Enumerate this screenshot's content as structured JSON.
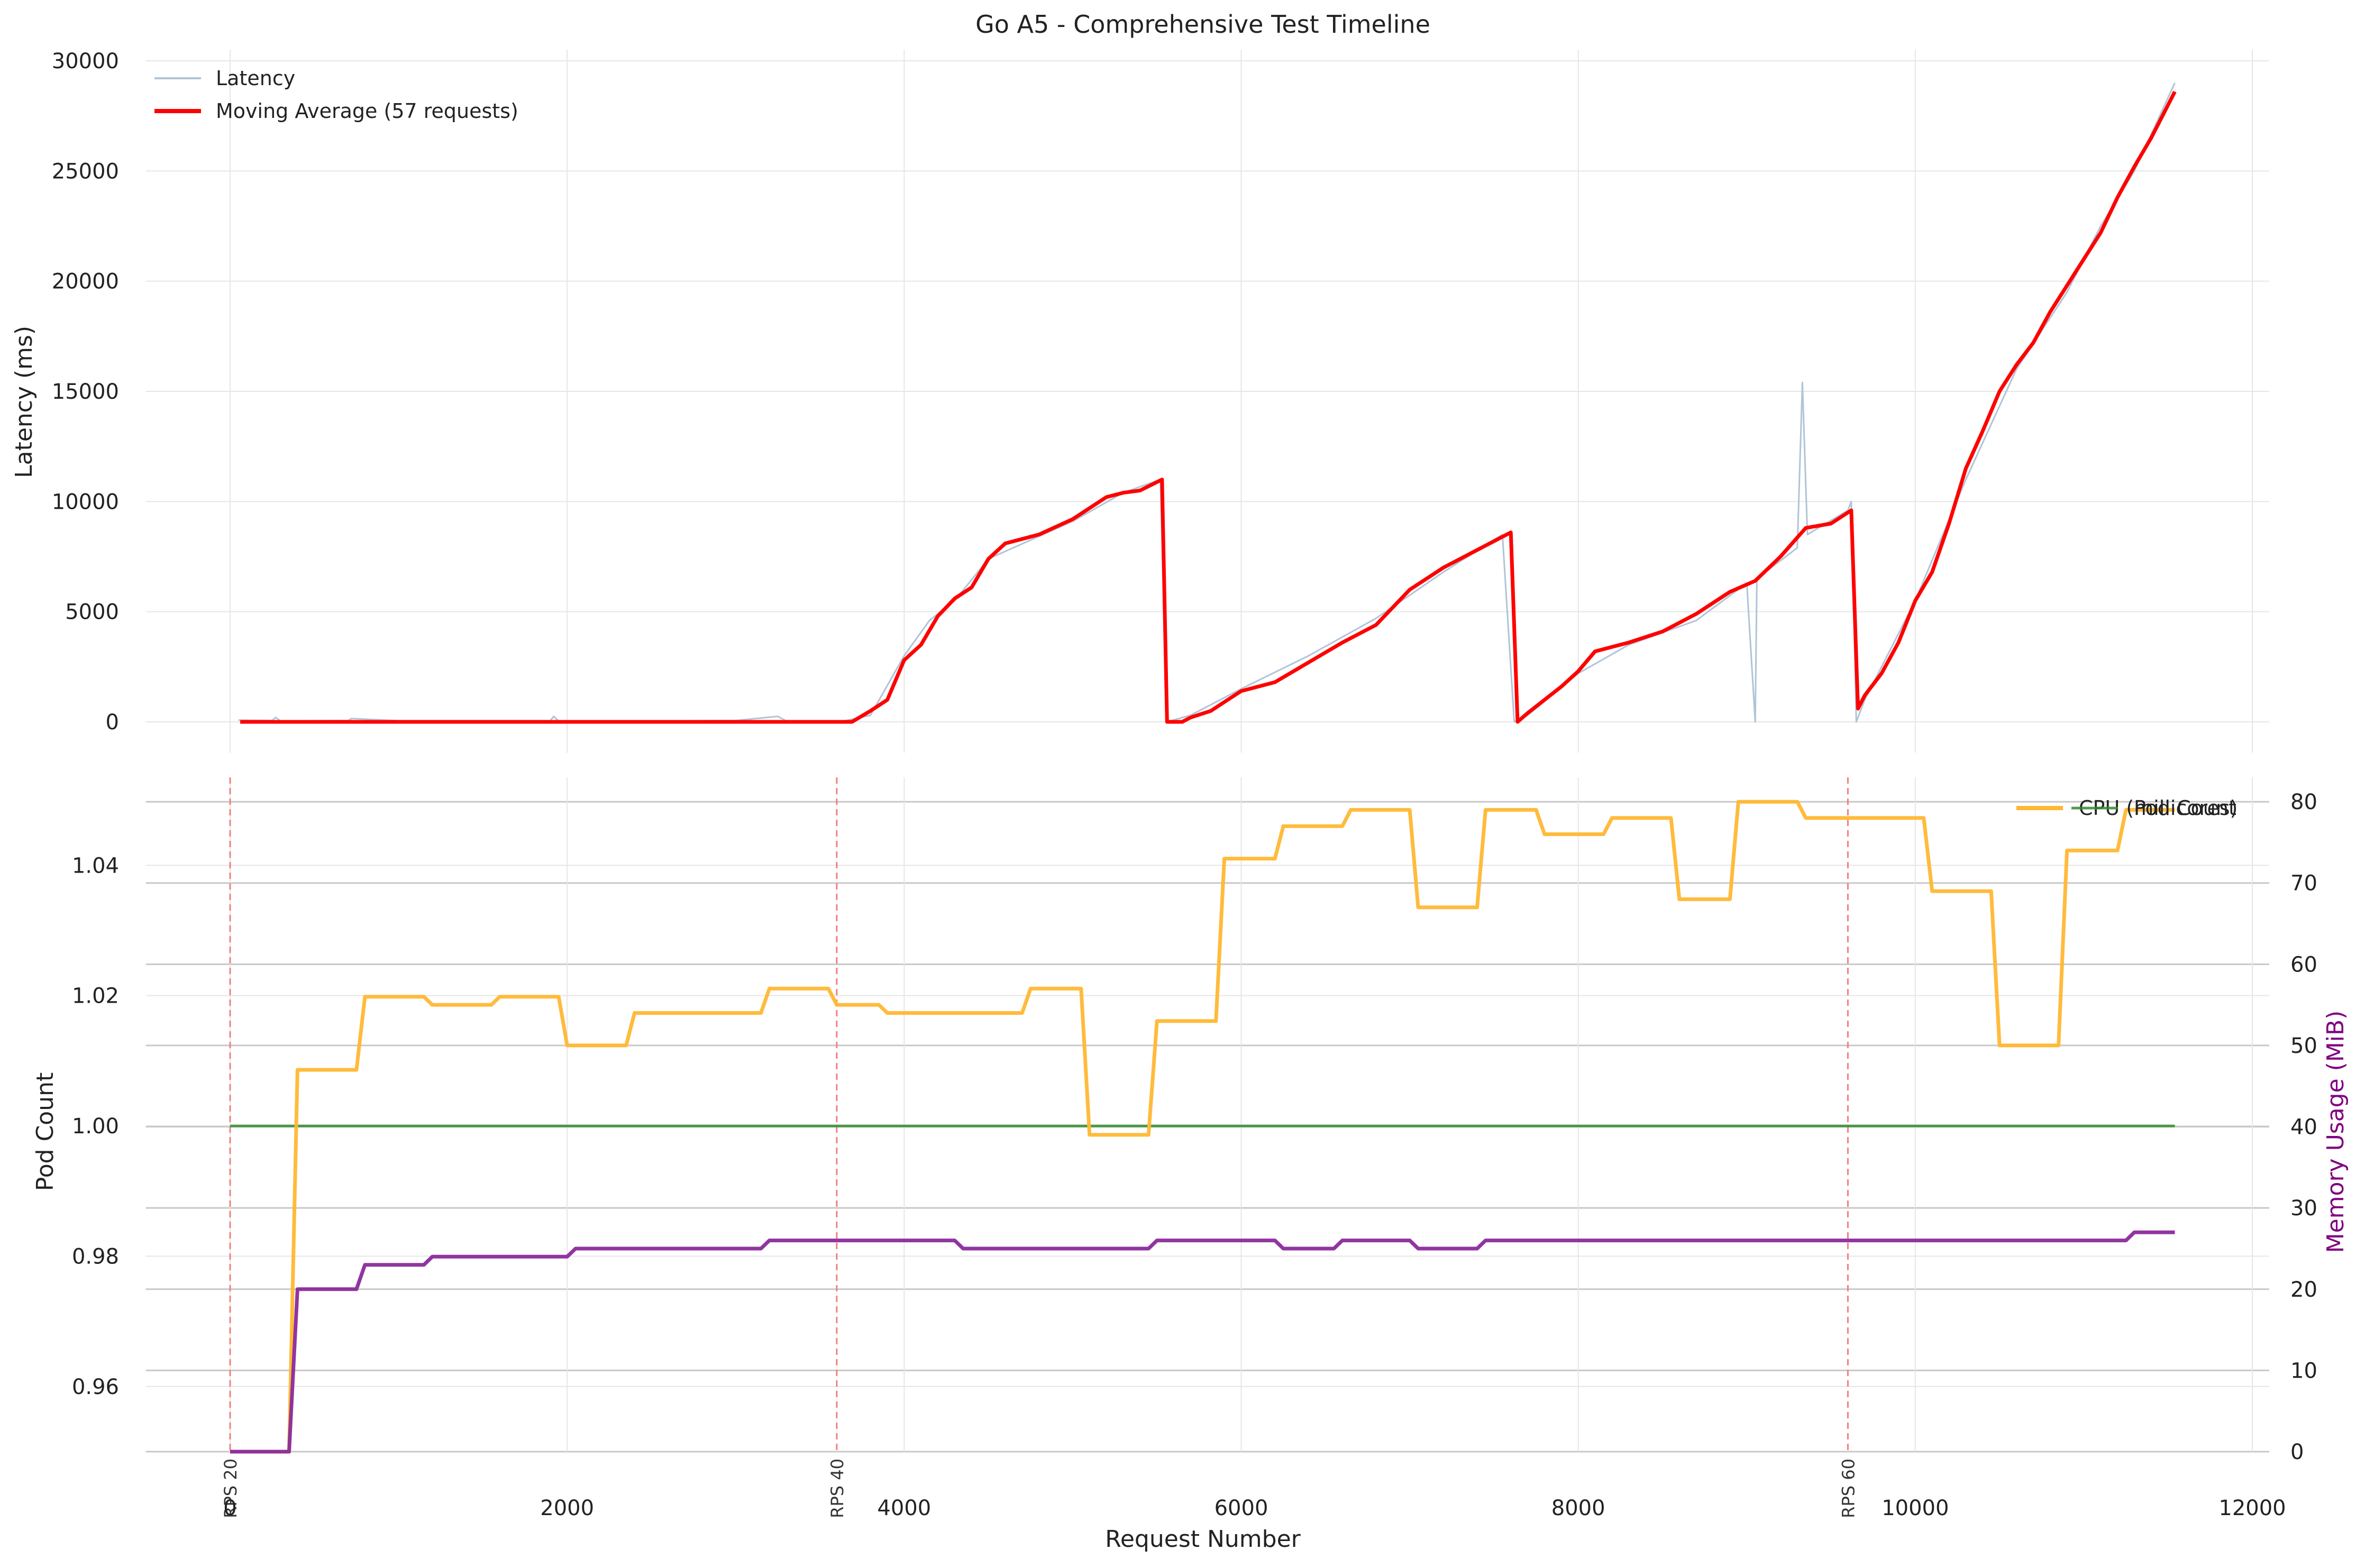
{
  "chart_data": [
    {
      "panel": "top",
      "type": "line",
      "title": "Go A5 - Comprehensive Test Timeline",
      "ylabel": "Latency (ms)",
      "xlim": [
        -500,
        12100
      ],
      "ylim": [
        -1400,
        30500
      ],
      "xticks": [
        0,
        2000,
        4000,
        6000,
        8000,
        10000,
        12000
      ],
      "yticks": [
        0,
        5000,
        10000,
        15000,
        20000,
        25000,
        30000
      ],
      "ytick_labels": [
        "0",
        "5000",
        "10000",
        "15000",
        "20000",
        "25000",
        "30000"
      ],
      "grid": true,
      "legend_position": "top-left",
      "series": [
        {
          "name": "Latency",
          "color": "#b0c4d8",
          "values_xy": [
            [
              50,
              80
            ],
            [
              250,
              60
            ],
            [
              270,
              200
            ],
            [
              300,
              40
            ],
            [
              700,
              60
            ],
            [
              720,
              150
            ],
            [
              1000,
              50
            ],
            [
              1900,
              50
            ],
            [
              1920,
              250
            ],
            [
              1950,
              40
            ],
            [
              2500,
              40
            ],
            [
              3000,
              60
            ],
            [
              3250,
              250
            ],
            [
              3300,
              40
            ],
            [
              3650,
              50
            ],
            [
              3800,
              300
            ],
            [
              4000,
              3000
            ],
            [
              4150,
              4600
            ],
            [
              4300,
              5500
            ],
            [
              4500,
              7400
            ],
            [
              5000,
              9100
            ],
            [
              5300,
              10400
            ],
            [
              5520,
              11000
            ],
            [
              5560,
              0
            ],
            [
              5700,
              300
            ],
            [
              6000,
              1500
            ],
            [
              6400,
              3000
            ],
            [
              6800,
              4700
            ],
            [
              7200,
              6800
            ],
            [
              7550,
              8500
            ],
            [
              7620,
              0
            ],
            [
              7700,
              300
            ],
            [
              8000,
              2200
            ],
            [
              8300,
              3500
            ],
            [
              8700,
              4600
            ],
            [
              9000,
              6300
            ],
            [
              9050,
              0
            ],
            [
              9060,
              6500
            ],
            [
              9300,
              7900
            ],
            [
              9330,
              15400
            ],
            [
              9360,
              8500
            ],
            [
              9600,
              9600
            ],
            [
              9620,
              10000
            ],
            [
              9650,
              0
            ],
            [
              9700,
              1000
            ],
            [
              10000,
              5500
            ],
            [
              10300,
              11000
            ],
            [
              10600,
              16000
            ],
            [
              10900,
              19500
            ],
            [
              11100,
              22500
            ],
            [
              11300,
              25000
            ],
            [
              11540,
              29000
            ]
          ]
        },
        {
          "name": "Moving Average (57 requests)",
          "color": "#ff0000",
          "values_xy": [
            [
              60,
              0
            ],
            [
              500,
              0
            ],
            [
              1000,
              0
            ],
            [
              1500,
              0
            ],
            [
              2000,
              0
            ],
            [
              2500,
              0
            ],
            [
              3000,
              0
            ],
            [
              3500,
              0
            ],
            [
              3690,
              0
            ],
            [
              3800,
              500
            ],
            [
              3900,
              1000
            ],
            [
              4000,
              2800
            ],
            [
              4100,
              3500
            ],
            [
              4200,
              4800
            ],
            [
              4300,
              5600
            ],
            [
              4400,
              6100
            ],
            [
              4500,
              7400
            ],
            [
              4600,
              8100
            ],
            [
              4800,
              8500
            ],
            [
              5000,
              9200
            ],
            [
              5100,
              9700
            ],
            [
              5200,
              10200
            ],
            [
              5300,
              10400
            ],
            [
              5400,
              10500
            ],
            [
              5530,
              11000
            ],
            [
              5560,
              0
            ],
            [
              5650,
              0
            ],
            [
              5700,
              200
            ],
            [
              5820,
              500
            ],
            [
              5900,
              900
            ],
            [
              6000,
              1400
            ],
            [
              6200,
              1800
            ],
            [
              6400,
              2700
            ],
            [
              6600,
              3600
            ],
            [
              6800,
              4400
            ],
            [
              7000,
              6000
            ],
            [
              7200,
              7000
            ],
            [
              7400,
              7800
            ],
            [
              7600,
              8600
            ],
            [
              7640,
              0
            ],
            [
              7700,
              400
            ],
            [
              7900,
              1600
            ],
            [
              8000,
              2300
            ],
            [
              8100,
              3200
            ],
            [
              8300,
              3600
            ],
            [
              8500,
              4100
            ],
            [
              8700,
              4900
            ],
            [
              8900,
              5900
            ],
            [
              9050,
              6400
            ],
            [
              9200,
              7500
            ],
            [
              9350,
              8800
            ],
            [
              9500,
              9000
            ],
            [
              9620,
              9600
            ],
            [
              9660,
              600
            ],
            [
              9700,
              1200
            ],
            [
              9800,
              2200
            ],
            [
              9900,
              3600
            ],
            [
              10000,
              5500
            ],
            [
              10100,
              6800
            ],
            [
              10200,
              9000
            ],
            [
              10300,
              11500
            ],
            [
              10400,
              13200
            ],
            [
              10500,
              15000
            ],
            [
              10600,
              16200
            ],
            [
              10700,
              17200
            ],
            [
              10800,
              18600
            ],
            [
              10900,
              19800
            ],
            [
              11000,
              21000
            ],
            [
              11100,
              22200
            ],
            [
              11200,
              23800
            ],
            [
              11300,
              25200
            ],
            [
              11400,
              26500
            ],
            [
              11540,
              28600
            ]
          ]
        }
      ]
    },
    {
      "panel": "bottom",
      "type": "line",
      "xlabel": "Request Number",
      "ylabel": "Pod Count",
      "ylabel_right": "Memory Usage (MiB)",
      "xlim": [
        -500,
        12100
      ],
      "ylim": [
        0.95,
        1.0535
      ],
      "ylim_right": [
        0,
        83
      ],
      "xticks": [
        0,
        2000,
        4000,
        6000,
        8000,
        10000,
        12000
      ],
      "xtick_labels": [
        "0",
        "2000",
        "4000",
        "6000",
        "8000",
        "10000",
        "12000"
      ],
      "yticks": [
        0.96,
        0.98,
        1.0,
        1.02,
        1.04
      ],
      "ytick_labels": [
        "0.96",
        "0.98",
        "1.00",
        "1.02",
        "1.04"
      ],
      "yticks_right": [
        0,
        10,
        20,
        30,
        40,
        50,
        60,
        70,
        80
      ],
      "grid": true,
      "legend_position": "top-right",
      "legend_text": [
        "CPU (millicores)",
        "Pod Count"
      ],
      "legend_colors": [
        "#ffa500",
        "#006400"
      ],
      "rps_markers": [
        {
          "x": 0,
          "label": "RPS 20"
        },
        {
          "x": 3600,
          "label": "RPS 40"
        },
        {
          "x": 9600,
          "label": "RPS 60"
        }
      ],
      "series": [
        {
          "name": "Pod Count",
          "axis": "left",
          "color": "#2e8b2e",
          "values_xy": [
            [
              0,
              1.0
            ],
            [
              11540,
              1.0
            ]
          ]
        },
        {
          "axis": "right",
          "color": "#ffb732",
          "values_xy": [
            [
              0,
              0
            ],
            [
              350,
              0
            ],
            [
              400,
              47
            ],
            [
              750,
              47
            ],
            [
              800,
              56
            ],
            [
              1150,
              56
            ],
            [
              1200,
              55
            ],
            [
              1550,
              55
            ],
            [
              1600,
              56
            ],
            [
              1950,
              56
            ],
            [
              2000,
              50
            ],
            [
              2350,
              50
            ],
            [
              2400,
              54
            ],
            [
              3150,
              54
            ],
            [
              3200,
              57
            ],
            [
              3550,
              57
            ],
            [
              3600,
              55
            ],
            [
              3850,
              55
            ],
            [
              3900,
              54
            ],
            [
              4700,
              54
            ],
            [
              4750,
              57
            ],
            [
              5050,
              57
            ],
            [
              5100,
              39
            ],
            [
              5450,
              39
            ],
            [
              5500,
              53
            ],
            [
              5850,
              53
            ],
            [
              5900,
              73
            ],
            [
              6200,
              73
            ],
            [
              6250,
              77
            ],
            [
              6600,
              77
            ],
            [
              6650,
              79
            ],
            [
              7000,
              79
            ],
            [
              7050,
              67
            ],
            [
              7400,
              67
            ],
            [
              7450,
              79
            ],
            [
              7750,
              79
            ],
            [
              7800,
              76
            ],
            [
              8150,
              76
            ],
            [
              8200,
              78
            ],
            [
              8550,
              78
            ],
            [
              8600,
              68
            ],
            [
              8900,
              68
            ],
            [
              8950,
              80
            ],
            [
              9300,
              80
            ],
            [
              9350,
              78
            ],
            [
              10050,
              78
            ],
            [
              10100,
              69
            ],
            [
              10450,
              69
            ],
            [
              10500,
              50
            ],
            [
              10850,
              50
            ],
            [
              10900,
              74
            ],
            [
              11200,
              74
            ],
            [
              11250,
              79
            ],
            [
              11540,
              79
            ]
          ]
        },
        {
          "axis": "right",
          "color": "#8b2a9b",
          "values_xy": [
            [
              0,
              0
            ],
            [
              350,
              0
            ],
            [
              400,
              20
            ],
            [
              750,
              20
            ],
            [
              800,
              23
            ],
            [
              1150,
              23
            ],
            [
              1200,
              24
            ],
            [
              2000,
              24
            ],
            [
              2050,
              25
            ],
            [
              3150,
              25
            ],
            [
              3200,
              26
            ],
            [
              4300,
              26
            ],
            [
              4350,
              25
            ],
            [
              5450,
              25
            ],
            [
              5500,
              26
            ],
            [
              6200,
              26
            ],
            [
              6250,
              25
            ],
            [
              6550,
              25
            ],
            [
              6600,
              26
            ],
            [
              7000,
              26
            ],
            [
              7050,
              25
            ],
            [
              7400,
              25
            ],
            [
              7450,
              26
            ],
            [
              11250,
              26
            ],
            [
              11300,
              27
            ],
            [
              11540,
              27
            ]
          ]
        }
      ]
    }
  ]
}
